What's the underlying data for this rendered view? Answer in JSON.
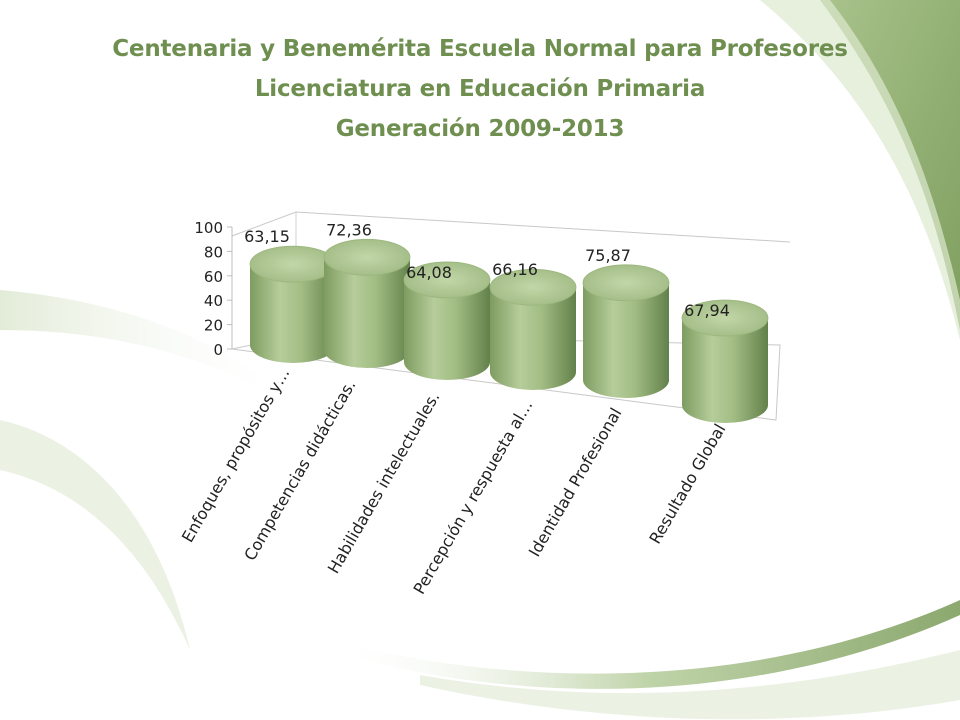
{
  "slide": {
    "title_lines": [
      "Centenaria y Benemérita Escuela Normal para Profesores",
      "Licenciatura en Educación Primaria",
      "Generación 2009-2013"
    ]
  },
  "colors": {
    "title": "#6e8f4f",
    "bar_top": "#b4cc98",
    "bar_body_mid": "#aac48c",
    "bar_body_dark": "#6f8e52",
    "background_swoosh": "#8aab6a",
    "background_swoosh_light": "#e3ecd8"
  },
  "chart_data": {
    "type": "bar",
    "style": "3d-cylinder",
    "title": "",
    "xlabel": "",
    "ylabel": "",
    "categories": [
      "Enfoques, propósitos y…",
      "Competencias didácticas.",
      "Habilidades intelectuales.",
      "Percepción y respuesta al…",
      "Identidad Profesional",
      "Resultado Global"
    ],
    "values": [
      63.15,
      72.36,
      64.08,
      66.16,
      75.87,
      67.94
    ],
    "data_labels": [
      "63,15",
      "72,36",
      "64,08",
      "66,16",
      "75,87",
      "67,94"
    ],
    "ylim": [
      0,
      100
    ],
    "yticks": [
      "0",
      "20",
      "40",
      "60",
      "80",
      "100"
    ],
    "grid": false,
    "legend": "none"
  }
}
